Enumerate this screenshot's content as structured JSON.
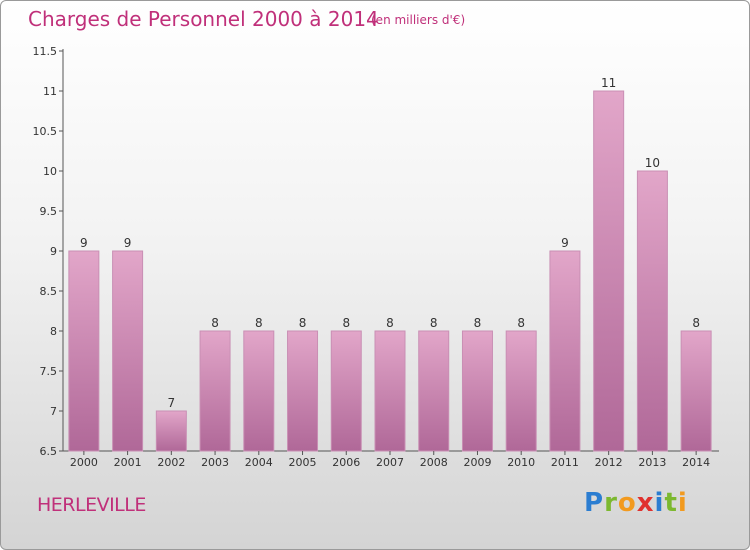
{
  "header": {
    "title": "Charges de Personnel 2000 à 2014",
    "subtitle": "(en milliers d'€)"
  },
  "footer": {
    "place": "HERLEVILLE",
    "logo": "Proxiti"
  },
  "colors": {
    "accent": "#c0307a",
    "bar_top": "#e2a6c9",
    "bar_bottom": "#b06898"
  },
  "chart_data": {
    "type": "bar",
    "title": "Charges de Personnel 2000 à 2014",
    "subtitle": "(en milliers d'€)",
    "categories": [
      "2000",
      "2001",
      "2002",
      "2003",
      "2004",
      "2005",
      "2006",
      "2007",
      "2008",
      "2009",
      "2010",
      "2011",
      "2012",
      "2013",
      "2014"
    ],
    "values": [
      9,
      9,
      7,
      8,
      8,
      8,
      8,
      8,
      8,
      8,
      8,
      9,
      11,
      10,
      8
    ],
    "ylim": [
      6.5,
      11.5
    ],
    "yticks": [
      6.5,
      7,
      7.5,
      8,
      8.5,
      9,
      9.5,
      10,
      10.5,
      11,
      11.5
    ],
    "ytick_labels": [
      "6.5",
      "7",
      "7.5",
      "8",
      "8.5",
      "9",
      "9.5",
      "10",
      "10.5",
      "11",
      "11.5"
    ],
    "grid": false,
    "xlabel": "",
    "ylabel": ""
  }
}
